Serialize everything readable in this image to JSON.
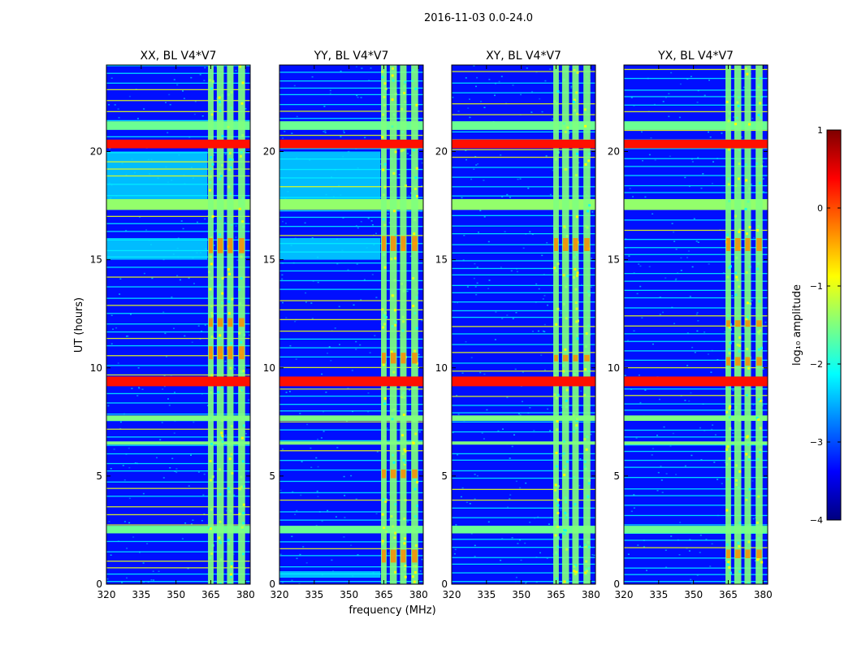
{
  "figure_title": "2016-11-03 0.0-24.0",
  "chart_data": {
    "type": "heatmap",
    "suptitle": "2016-11-03 0.0-24.0",
    "xlabel": "frequency (MHz)",
    "ylabel": "UT (hours)",
    "xlim": [
      320,
      382
    ],
    "ylim": [
      0,
      24
    ],
    "xticks": [
      320,
      335,
      350,
      365,
      380
    ],
    "yticks": [
      0,
      5,
      10,
      15,
      20
    ],
    "colorbar": {
      "label": "log₁₀ amplitude",
      "range": [
        -4,
        1
      ],
      "ticks": [
        -4,
        -3,
        -2,
        -1,
        0,
        1
      ],
      "tick_labels": [
        "−4",
        "−3",
        "−2",
        "−1",
        "0",
        "1"
      ],
      "colormap": [
        "#00007f",
        "#0000ff",
        "#007fff",
        "#00ffff",
        "#7fff7f",
        "#ffff00",
        "#ff7f00",
        "#ff0000",
        "#7f0000"
      ]
    },
    "background_value": -3.3,
    "strong_bands": [
      {
        "t0": 9.15,
        "t1": 9.6,
        "value": 0.3
      },
      {
        "t0": 20.15,
        "t1": 20.55,
        "value": 0.3
      }
    ],
    "green_bands": [
      {
        "t0": 17.3,
        "t1": 17.8,
        "value": -1.4
      },
      {
        "t0": 2.35,
        "t1": 2.7,
        "value": -1.6
      },
      {
        "t0": 7.55,
        "t1": 7.8,
        "value": -1.5
      },
      {
        "t0": 6.45,
        "t1": 6.6,
        "value": -1.5
      },
      {
        "t0": 21.0,
        "t1": 21.4,
        "value": -1.6
      }
    ],
    "rfi_channels": [
      {
        "f0": 363.8,
        "f1": 366.2
      },
      {
        "f0": 367.6,
        "f1": 370.6
      },
      {
        "f0": 372.0,
        "f1": 374.8
      },
      {
        "f0": 376.8,
        "f1": 379.8
      }
    ],
    "panels": [
      {
        "title": "XX, BL V4*V7",
        "cyan_regions": [
          [
            15.0,
            16.0
          ],
          [
            17.7,
            20.0
          ]
        ],
        "red_patches": [
          [
            15.3,
            16.0
          ],
          [
            10.4,
            11.0
          ],
          [
            11.9,
            12.3
          ]
        ]
      },
      {
        "title": "YY, BL V4*V7",
        "cyan_regions": [
          [
            15.0,
            16.0
          ],
          [
            17.7,
            20.0
          ],
          [
            0.3,
            0.6
          ]
        ],
        "red_patches": [
          [
            15.4,
            16.1
          ],
          [
            10.2,
            10.7
          ],
          [
            1.0,
            1.6
          ],
          [
            4.9,
            5.3
          ]
        ]
      },
      {
        "title": "XY, BL V4*V7",
        "cyan_regions": [],
        "red_patches": [
          [
            15.4,
            16.0
          ],
          [
            10.3,
            10.6
          ]
        ]
      },
      {
        "title": "YX, BL V4*V7",
        "cyan_regions": [],
        "red_patches": [
          [
            15.4,
            16.0
          ],
          [
            11.9,
            12.2
          ],
          [
            1.2,
            1.6
          ],
          [
            10.1,
            10.5
          ]
        ]
      }
    ]
  }
}
